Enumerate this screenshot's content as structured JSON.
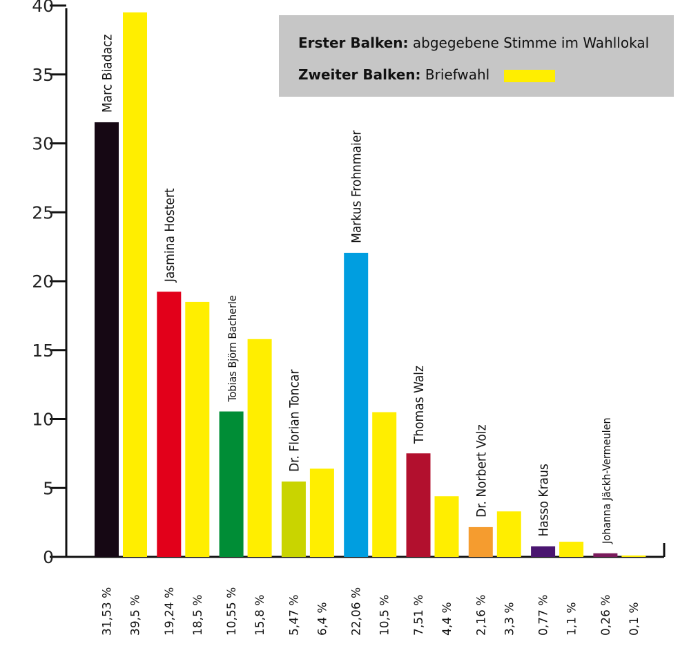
{
  "chart_data": {
    "type": "bar",
    "ylim": [
      0,
      40
    ],
    "yticks": [
      "0",
      "5",
      "10",
      "15",
      "20",
      "25",
      "30",
      "35",
      "40"
    ],
    "legend": {
      "first_label": "Erster Balken:",
      "first_text": "abgegebene Stimme im Wahllokal",
      "second_label": "Zweiter Balken:",
      "second_text": "Briefwahl",
      "second_color": "#ffee00"
    },
    "series": [
      {
        "name": "Erster Balken",
        "role": "Wahllokal"
      },
      {
        "name": "Zweiter Balken",
        "role": "Briefwahl"
      }
    ],
    "candidates": [
      {
        "name": "Marc Biadacz",
        "color": "#160814",
        "v1": 31.53,
        "v2": 39.5,
        "l1": "31,53 %",
        "l2": "39,5 %"
      },
      {
        "name": "Jasmina Hostert",
        "color": "#e2001a",
        "v1": 19.24,
        "v2": 18.5,
        "l1": "19,24 %",
        "l2": "18,5 %"
      },
      {
        "name": "Tobias Björn Bacherle",
        "color": "#008d36",
        "v1": 10.55,
        "v2": 15.8,
        "l1": "10,55 %",
        "l2": "15,8 %"
      },
      {
        "name": "Dr. Florian Toncar",
        "color": "#c9d400",
        "v1": 5.47,
        "v2": 6.4,
        "l1": "5,47 %",
        "l2": "6,4 %"
      },
      {
        "name": "Markus Frohnmaier",
        "color": "#009ee0",
        "v1": 22.06,
        "v2": 10.5,
        "l1": "22,06 %",
        "l2": "10,5 %"
      },
      {
        "name": "Thomas Walz",
        "color": "#b2102e",
        "v1": 7.51,
        "v2": 4.4,
        "l1": "7,51 %",
        "l2": "4,4 %"
      },
      {
        "name": "Dr. Norbert Volz",
        "color": "#f59c2f",
        "v1": 2.16,
        "v2": 3.3,
        "l1": "2,16 %",
        "l2": "3,3 %"
      },
      {
        "name": "Hasso Kraus",
        "color": "#4a1570",
        "v1": 0.77,
        "v2": 1.1,
        "l1": "0,77 %",
        "l2": "1,1 %"
      },
      {
        "name": "Johanna Jäckh-Vermeulen",
        "color": "#7a1b5c",
        "v1": 0.26,
        "v2": 0.1,
        "l1": "0,26 %",
        "l2": "0,1 %"
      }
    ],
    "second_bar_color": "#ffee00",
    "axis_color": "#111111"
  }
}
